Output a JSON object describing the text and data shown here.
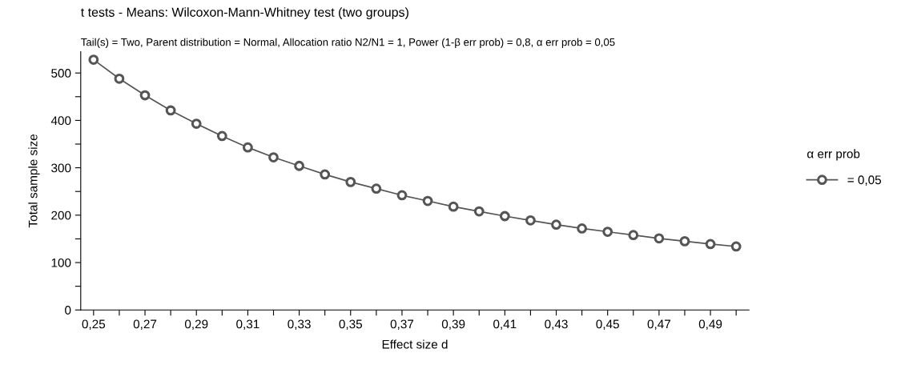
{
  "chart_data": {
    "type": "line",
    "title": "t tests - Means: Wilcoxon-Mann-Whitney test (two groups)",
    "subtitle": "Tail(s) = Two, Parent distribution = Normal, Allocation ratio N2/N1 = 1, Power (1-β err prob) = 0,8, α err prob = 0,05",
    "xlabel": "Effect size d",
    "ylabel": "Total sample size",
    "legend_title": "α err prob",
    "x": [
      0.25,
      0.26,
      0.27,
      0.28,
      0.29,
      0.3,
      0.31,
      0.32,
      0.33,
      0.34,
      0.35,
      0.36,
      0.37,
      0.38,
      0.39,
      0.4,
      0.41,
      0.42,
      0.43,
      0.44,
      0.45,
      0.46,
      0.47,
      0.48,
      0.49,
      0.5
    ],
    "series": [
      {
        "name": "= 0,05",
        "color": "#555555",
        "values": [
          528,
          488,
          453,
          421,
          393,
          367,
          343,
          322,
          304,
          286,
          270,
          256,
          242,
          230,
          218,
          208,
          198,
          189,
          180,
          172,
          165,
          158,
          151,
          145,
          139,
          134
        ]
      }
    ],
    "xlim": [
      0.245,
      0.505
    ],
    "ylim": [
      0,
      545
    ],
    "xticks": [
      {
        "value": 0.25,
        "label": "0,25"
      },
      {
        "value": 0.26,
        "label": null
      },
      {
        "value": 0.27,
        "label": "0,27"
      },
      {
        "value": 0.28,
        "label": null
      },
      {
        "value": 0.29,
        "label": "0,29"
      },
      {
        "value": 0.3,
        "label": null
      },
      {
        "value": 0.31,
        "label": "0,31"
      },
      {
        "value": 0.32,
        "label": null
      },
      {
        "value": 0.33,
        "label": "0,33"
      },
      {
        "value": 0.34,
        "label": null
      },
      {
        "value": 0.35,
        "label": "0,35"
      },
      {
        "value": 0.36,
        "label": null
      },
      {
        "value": 0.37,
        "label": "0,37"
      },
      {
        "value": 0.38,
        "label": null
      },
      {
        "value": 0.39,
        "label": "0,39"
      },
      {
        "value": 0.4,
        "label": null
      },
      {
        "value": 0.41,
        "label": "0,41"
      },
      {
        "value": 0.42,
        "label": null
      },
      {
        "value": 0.43,
        "label": "0,43"
      },
      {
        "value": 0.44,
        "label": null
      },
      {
        "value": 0.45,
        "label": "0,45"
      },
      {
        "value": 0.46,
        "label": null
      },
      {
        "value": 0.47,
        "label": "0,47"
      },
      {
        "value": 0.48,
        "label": null
      },
      {
        "value": 0.49,
        "label": "0,49"
      },
      {
        "value": 0.5,
        "label": null
      }
    ],
    "yticks": [
      0,
      {
        "value": 50,
        "label": null
      },
      100,
      {
        "value": 150,
        "label": null
      },
      200,
      {
        "value": 250,
        "label": null
      },
      300,
      {
        "value": 350,
        "label": null
      },
      400,
      {
        "value": 450,
        "label": null
      },
      500
    ],
    "grid": false,
    "legend": "right",
    "marker": "circle",
    "line_style": "solid"
  }
}
